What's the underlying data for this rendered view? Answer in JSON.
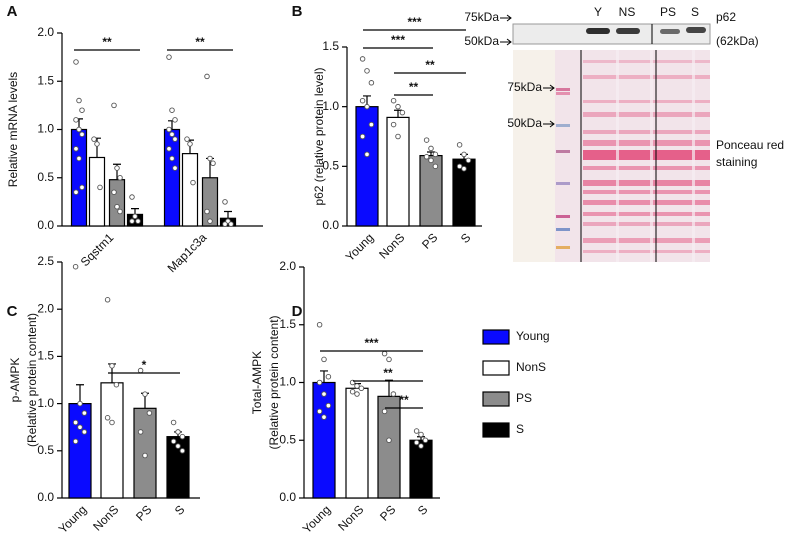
{
  "chart_data": [
    {
      "panel": "A",
      "type": "bar",
      "ylabel": [
        "Relative mRNA levels"
      ],
      "categories": [
        "Sqstm1",
        "Map1c3a"
      ],
      "series": [
        {
          "name": "Young",
          "color": "#0a0aff",
          "values": [
            1.0,
            1.0
          ],
          "errors": [
            0.11,
            0.09
          ],
          "points": [
            [
              1.7,
              1.3,
              1.2,
              1.1,
              1.0,
              0.95,
              0.8,
              0.7,
              0.4,
              0.35
            ],
            [
              1.75,
              1.2,
              1.1,
              1.0,
              0.95,
              0.9,
              0.8,
              0.7,
              0.6
            ]
          ]
        },
        {
          "name": "NonS",
          "color": "#ffffff",
          "values": [
            0.71,
            0.75
          ],
          "errors": [
            0.2,
            0.14
          ],
          "points": [
            [
              0.9,
              0.85,
              0.4
            ],
            [
              0.9,
              0.85,
              0.45
            ]
          ]
        },
        {
          "name": "PS",
          "color": "#8c8c8c",
          "values": [
            0.48,
            0.5
          ],
          "errors": [
            0.16,
            0.2
          ],
          "points": [
            [
              1.25,
              0.6,
              0.5,
              0.35,
              0.2,
              0.15
            ],
            [
              1.55,
              0.7,
              0.65,
              0.15,
              0.05
            ]
          ]
        },
        {
          "name": "S",
          "color": "#000000",
          "values": [
            0.12,
            0.08
          ],
          "errors": [
            0.06,
            0.07
          ],
          "points": [
            [
              0.3,
              0.1,
              0.05,
              0.05
            ],
            [
              0.25,
              0.05,
              0.02,
              0.02
            ]
          ]
        }
      ],
      "ylim": [
        0,
        2
      ],
      "yticks": [
        {
          "value": 0,
          "label": "0.0"
        },
        0.5,
        {
          "value": 1,
          "label": "1.0"
        },
        1.5,
        {
          "value": 2,
          "label": "2.0"
        }
      ],
      "annotations": [
        "**",
        "**"
      ]
    },
    {
      "panel": "B",
      "type": "bar",
      "ylabel": [
        "p62 (relative protein level)"
      ],
      "categories": [
        "Young",
        "NonS",
        "PS",
        "S"
      ],
      "colors": [
        "#0a0aff",
        "#ffffff",
        "#8c8c8c",
        "#000000"
      ],
      "values": [
        1.0,
        0.91,
        0.59,
        0.56
      ],
      "errors": [
        0.09,
        0.06,
        0.03,
        0.04
      ],
      "points": [
        [
          1.4,
          1.3,
          1.2,
          1.05,
          1.0,
          0.85,
          0.75,
          0.6
        ],
        [
          1.05,
          1.0,
          0.95,
          0.85,
          0.75
        ],
        [
          0.72,
          0.65,
          0.6,
          0.58,
          0.55,
          0.5
        ],
        [
          0.68,
          0.6,
          0.55,
          0.5,
          0.48
        ]
      ],
      "ylim": [
        0,
        1.5
      ],
      "yticks": [
        {
          "value": 0,
          "label": "0.0"
        },
        0.5,
        {
          "value": 1,
          "label": "1.0"
        },
        1.5
      ],
      "annotations": [
        "***",
        "***",
        "**",
        "**"
      ]
    },
    {
      "panel": "C",
      "type": "bar",
      "ylabel": [
        "p-AMPK",
        "(Relative protein content)"
      ],
      "categories": [
        "Young",
        "NonS",
        "PS",
        "S"
      ],
      "colors": [
        "#0a0aff",
        "#ffffff",
        "#8c8c8c",
        "#000000"
      ],
      "values": [
        1.0,
        1.22,
        0.95,
        0.65
      ],
      "errors": [
        0.2,
        0.2,
        0.16,
        0.05
      ],
      "points": [
        [
          2.45,
          1.0,
          0.9,
          0.8,
          0.75,
          0.7,
          0.6
        ],
        [
          2.1,
          1.4,
          1.2,
          0.85,
          0.8
        ],
        [
          1.35,
          1.1,
          0.9,
          0.7,
          0.45
        ],
        [
          0.8,
          0.7,
          0.65,
          0.6,
          0.55,
          0.5
        ]
      ],
      "ylim": [
        0,
        2.5
      ],
      "yticks": [
        {
          "value": 0,
          "label": "0.0"
        },
        0.5,
        {
          "value": 1,
          "label": "1.0"
        },
        1.5,
        {
          "value": 2,
          "label": "2.0"
        },
        2.5
      ],
      "annotations": [
        "*"
      ]
    },
    {
      "panel": "D",
      "type": "bar",
      "ylabel": [
        "Total-AMPK",
        "(Relative protein content)"
      ],
      "categories": [
        "Young",
        "NonS",
        "PS",
        "S"
      ],
      "colors": [
        "#0a0aff",
        "#ffffff",
        "#8c8c8c",
        "#000000"
      ],
      "values": [
        1.0,
        0.95,
        0.88,
        0.5
      ],
      "errors": [
        0.1,
        0.04,
        0.14,
        0.03
      ],
      "points": [
        [
          1.5,
          1.2,
          1.05,
          1.0,
          0.9,
          0.8,
          0.75,
          0.7
        ],
        [
          1.0,
          0.97,
          0.95,
          0.92,
          0.9
        ],
        [
          1.25,
          1.2,
          0.9,
          0.75,
          0.5
        ],
        [
          0.58,
          0.55,
          0.5,
          0.48,
          0.45
        ]
      ],
      "ylim": [
        0,
        2
      ],
      "yticks": [
        {
          "value": 0,
          "label": "0.0"
        },
        0.5,
        {
          "value": 1,
          "label": "1.0"
        },
        1.5,
        {
          "value": 2,
          "label": "2.0"
        }
      ],
      "annotations": [
        "***",
        "**",
        "**"
      ]
    }
  ],
  "blot": {
    "lanes": [
      "Y",
      "NS",
      "PS",
      "S"
    ],
    "top_markers": [
      "75kDa",
      "50kDa"
    ],
    "protein": [
      "p62",
      "(62kDa)"
    ],
    "stain_markers": [
      "75kDa",
      "50kDa"
    ],
    "stain_label": [
      "Ponceau red",
      "staining"
    ]
  }
}
